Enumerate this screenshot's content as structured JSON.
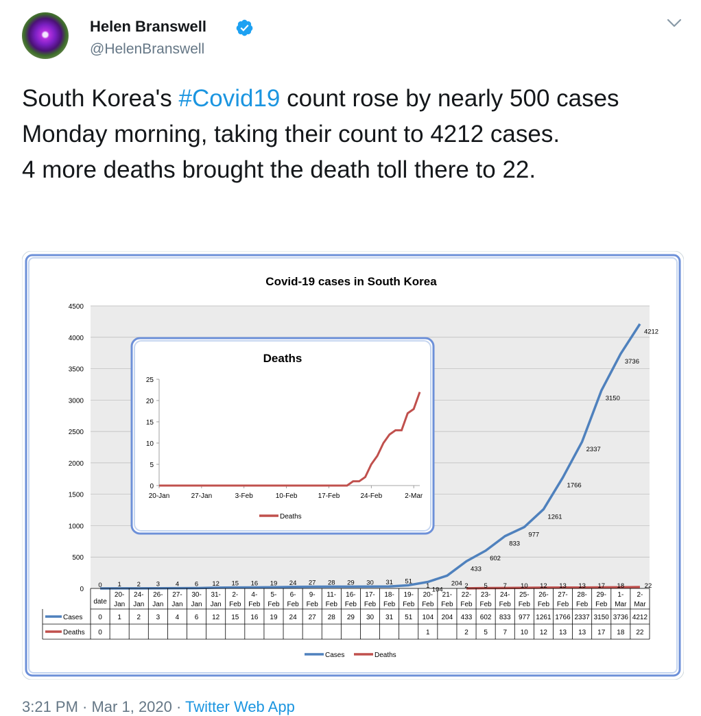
{
  "user": {
    "name": "Helen Branswell",
    "handle": "@HelenBranswell"
  },
  "tweet": {
    "part1": "South Korea's ",
    "hashtag": "#Covid19",
    "part2": " count rose by nearly 500 cases Monday morning, taking their count to 4212 cases.",
    "line2": "4 more deaths brought the death toll there to 22."
  },
  "footer": {
    "time_date": "3:21 PM · Mar 1, 2020 · ",
    "source": "Twitter Web App"
  },
  "colors": {
    "accent": "#1b95e0",
    "cases": "#4f81bd",
    "deaths": "#c0504d"
  },
  "icons": {
    "verified": "verified-badge-icon",
    "caret": "chevron-down-icon"
  },
  "chart_data": [
    {
      "type": "line",
      "title": "Covid-19 cases in South Korea",
      "ylim": [
        0,
        4500
      ],
      "yticks": [
        0,
        500,
        1000,
        1500,
        2000,
        2500,
        3000,
        3500,
        4000,
        4500
      ],
      "grid": true,
      "legend": "bottom",
      "first_column_label": "date",
      "categories": [
        "20-Jan",
        "24-Jan",
        "26-Jan",
        "27-Jan",
        "30-Jan",
        "31-Jan",
        "2-Feb",
        "4-Feb",
        "5-Feb",
        "6-Feb",
        "9-Feb",
        "11-Feb",
        "16-Feb",
        "17-Feb",
        "18-Feb",
        "19-Feb",
        "20-Feb",
        "21-Feb",
        "22-Feb",
        "23-Feb",
        "24-Feb",
        "25-Feb",
        "26-Feb",
        "27-Feb",
        "28-Feb",
        "29-Feb",
        "1-Mar",
        "2-Mar"
      ],
      "series": [
        {
          "name": "Cases",
          "color": "#4f81bd",
          "first_value": "0",
          "values": [
            1,
            2,
            3,
            4,
            6,
            12,
            15,
            16,
            19,
            24,
            27,
            28,
            29,
            30,
            31,
            51,
            104,
            204,
            433,
            602,
            833,
            977,
            1261,
            1766,
            2337,
            3150,
            3736,
            4212
          ]
        },
        {
          "name": "Deaths",
          "color": "#c0504d",
          "first_value": "0",
          "values": [
            null,
            null,
            null,
            null,
            null,
            null,
            null,
            null,
            null,
            null,
            null,
            null,
            null,
            null,
            null,
            null,
            1,
            null,
            2,
            5,
            7,
            10,
            12,
            13,
            13,
            17,
            18,
            22
          ]
        }
      ]
    },
    {
      "type": "line",
      "title": "Deaths",
      "ylim": [
        0,
        25
      ],
      "yticks": [
        0,
        5,
        10,
        15,
        20,
        25
      ],
      "xticks": [
        "20-Jan",
        "27-Jan",
        "3-Feb",
        "10-Feb",
        "17-Feb",
        "24-Feb",
        "2-Mar"
      ],
      "legend": "bottom",
      "series": [
        {
          "name": "Deaths",
          "color": "#c0504d",
          "values": [
            0,
            0,
            0,
            0,
            0,
            0,
            0,
            0,
            0,
            0,
            0,
            0,
            0,
            0,
            0,
            0,
            0,
            0,
            0,
            0,
            0,
            0,
            0,
            0,
            0,
            0,
            0,
            0,
            0,
            0,
            0,
            0,
            1,
            1,
            2,
            5,
            7,
            10,
            12,
            13,
            13,
            17,
            18,
            22
          ]
        }
      ]
    }
  ]
}
